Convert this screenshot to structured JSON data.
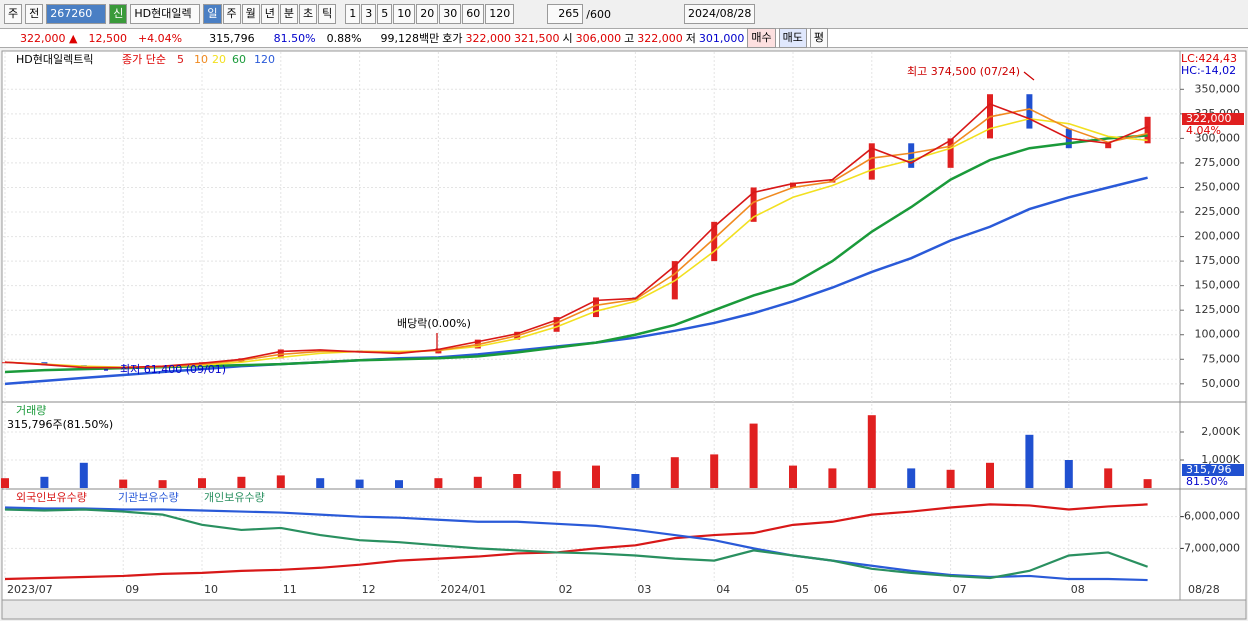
{
  "toolbar": {
    "menu_first": "주",
    "menu_second": "전",
    "code": "267260",
    "sin": "신",
    "name": "HD현대일렉",
    "periods": [
      "일",
      "주",
      "월",
      "년",
      "분",
      "초",
      "틱"
    ],
    "intervals": [
      "1",
      "3",
      "5",
      "10",
      "20",
      "30",
      "60",
      "120"
    ],
    "count": "265",
    "total": "/600",
    "date": "2024/08/28"
  },
  "quote": {
    "price": "322,000 ▲",
    "change": "12,500",
    "change_pct": "+4.04%",
    "volume": "315,796",
    "volume_ratio": "81.50%",
    "turnover": "0.88%",
    "amount": "99,128백만",
    "bid_label": "호가",
    "ask": "322,000",
    "bid": "321,500",
    "open_label": "시",
    "open": "306,000",
    "high_label": "고",
    "high": "322,000",
    "low_label": "저",
    "low": "301,000",
    "buy": "매수",
    "sell": "매도",
    "avg": "평"
  },
  "chart_data": [
    {
      "type": "line",
      "legend_name": "HD현대일렉트릭",
      "ma_label": "종가 단순",
      "lc_label": "LC:424,43",
      "hc_label": "HC:-14,02",
      "current_label": "322,000",
      "current_pct": "4.04%",
      "annotations": [
        "최고 374,500 (07/24)",
        "배당락(0.00%)",
        "최저 61,400 (09/01)"
      ],
      "categories": [
        "2023/07",
        null,
        null,
        "09",
        null,
        "10",
        null,
        "11",
        null,
        "12",
        null,
        "2024/01",
        null,
        null,
        "02",
        null,
        "03",
        null,
        "04",
        null,
        "05",
        null,
        "06",
        null,
        "07",
        null,
        null,
        "08",
        null,
        null
      ],
      "current_date_label": "08/28",
      "values": [
        72000,
        69000,
        66000,
        67000,
        68000,
        72000,
        76000,
        85000,
        84000,
        82000,
        81000,
        86000,
        95000,
        103000,
        118000,
        138000,
        136000,
        175000,
        215000,
        250000,
        255000,
        258000,
        295000,
        270000,
        300000,
        345000,
        310000,
        290000,
        295000,
        322000
      ],
      "series": [
        {
          "name": "5",
          "color": "#d81818",
          "values": [
            72000,
            69500,
            66500,
            66500,
            68000,
            71000,
            75000,
            83000,
            84500,
            82500,
            81000,
            85000,
            93000,
            101000,
            115000,
            135000,
            137000,
            170000,
            210000,
            245000,
            254000,
            258000,
            290000,
            275000,
            298000,
            335000,
            320000,
            300000,
            295000,
            312000
          ]
        },
        {
          "name": "10",
          "color": "#f08a20",
          "values": [
            72000,
            70000,
            67000,
            66500,
            67500,
            70000,
            74000,
            80000,
            83000,
            83000,
            82000,
            84000,
            90000,
            99000,
            112000,
            130000,
            136000,
            162000,
            198000,
            235000,
            250000,
            256000,
            280000,
            285000,
            292000,
            322000,
            330000,
            310000,
            296000,
            305000
          ]
        },
        {
          "name": "20",
          "color": "#f2e020",
          "values": [
            72000,
            70000,
            68000,
            67000,
            67500,
            69000,
            72000,
            77000,
            81000,
            83000,
            83000,
            84000,
            88000,
            96000,
            108000,
            124000,
            134000,
            155000,
            185000,
            220000,
            240000,
            252000,
            268000,
            278000,
            290000,
            310000,
            320000,
            315000,
            302000,
            298000
          ]
        },
        {
          "name": "60",
          "color": "#1a9a3a",
          "values": [
            62000,
            64000,
            65000,
            66000,
            67000,
            68000,
            69000,
            70000,
            72000,
            74000,
            75000,
            76000,
            78000,
            82000,
            87000,
            92000,
            100000,
            110000,
            125000,
            140000,
            152000,
            175000,
            205000,
            230000,
            258000,
            278000,
            290000,
            295000,
            300000,
            303000
          ]
        },
        {
          "name": "120",
          "color": "#2a5ad8",
          "values": [
            50000,
            53000,
            56000,
            59000,
            62000,
            65000,
            68000,
            70000,
            72000,
            74000,
            76000,
            77000,
            80000,
            84000,
            88000,
            92000,
            97000,
            104000,
            112000,
            122000,
            134000,
            148000,
            164000,
            178000,
            196000,
            210000,
            228000,
            240000,
            250000,
            260000
          ]
        }
      ],
      "ylim": [
        32500,
        388000
      ],
      "yticks": [
        {
          "value": 50000,
          "label": "50,000"
        },
        {
          "value": 75000,
          "label": "75,000"
        },
        {
          "value": 100000,
          "label": "100,000"
        },
        {
          "value": 125000,
          "label": "125,000"
        },
        {
          "value": 150000,
          "label": "150,000"
        },
        {
          "value": 175000,
          "label": "175,000"
        },
        {
          "value": 200000,
          "label": "200,000"
        },
        {
          "value": 225000,
          "label": "225,000"
        },
        {
          "value": 250000,
          "label": "250,000"
        },
        {
          "value": 275000,
          "label": "275,000"
        },
        {
          "value": 300000,
          "label": "300,000"
        },
        {
          "value": 325000,
          "label": "325,000"
        },
        {
          "value": 350000,
          "label": "350,000"
        }
      ],
      "grid": true
    },
    {
      "type": "bar",
      "title": "거래량",
      "subtitle": "315,796주(81.50%)",
      "current_label": "315,796",
      "current_ratio": "81.50%",
      "values": [
        350000,
        400000,
        900000,
        300000,
        280000,
        350000,
        400000,
        450000,
        350000,
        300000,
        280000,
        350000,
        400000,
        500000,
        600000,
        800000,
        500000,
        1100000,
        1200000,
        2300000,
        800000,
        700000,
        2600000,
        700000,
        650000,
        900000,
        1900000,
        1000000,
        700000,
        315796
      ],
      "ylim": [
        0,
        3000000
      ],
      "yticks": [
        {
          "value": 1000000,
          "label": "1,000K"
        },
        {
          "value": 2000000,
          "label": "2,000K"
        }
      ]
    },
    {
      "type": "line",
      "series": [
        {
          "name": "외국인보유수량",
          "color": "#d81818",
          "values": [
            -7968000,
            -7935000,
            -7903000,
            -7871000,
            -7806000,
            -7774000,
            -7710000,
            -7677000,
            -7613000,
            -7516000,
            -7387000,
            -7323000,
            -7258000,
            -7161000,
            -7129000,
            -7000000,
            -6903000,
            -6677000,
            -6581000,
            -6516000,
            -6258000,
            -6161000,
            -5935000,
            -5839000,
            -5710000,
            -5613000,
            -5645000,
            -5774000,
            -5677000,
            -5613000
          ]
        },
        {
          "name": "기관보유수량",
          "color": "#2a5ad8",
          "values": [
            -5710000,
            -5742000,
            -5742000,
            -5774000,
            -5774000,
            -5806000,
            -5839000,
            -5871000,
            -5935000,
            -6000000,
            -6032000,
            -6097000,
            -6161000,
            -6161000,
            -6226000,
            -6290000,
            -6419000,
            -6581000,
            -6742000,
            -7000000,
            -7226000,
            -7387000,
            -7548000,
            -7710000,
            -7839000,
            -7903000,
            -7871000,
            -7968000,
            -7968000,
            -8000000
          ]
        },
        {
          "name": "개인보유수량",
          "color": "#2a9060",
          "values": [
            -5774000,
            -5806000,
            -5774000,
            -5839000,
            -5935000,
            -6258000,
            -6419000,
            -6355000,
            -6581000,
            -6742000,
            -6806000,
            -6903000,
            -7000000,
            -7065000,
            -7129000,
            -7161000,
            -7226000,
            -7323000,
            -7387000,
            -7065000,
            -7226000,
            -7387000,
            -7645000,
            -7774000,
            -7871000,
            -7935000,
            -7710000,
            -7226000,
            -7129000,
            -7581000
          ]
        }
      ],
      "ylim": [
        -8030000,
        -5190000
      ],
      "yticks": [
        {
          "value": -6000000,
          "label": "-6,000,000"
        },
        {
          "value": -7000000,
          "label": "-7,000,000"
        }
      ]
    }
  ]
}
